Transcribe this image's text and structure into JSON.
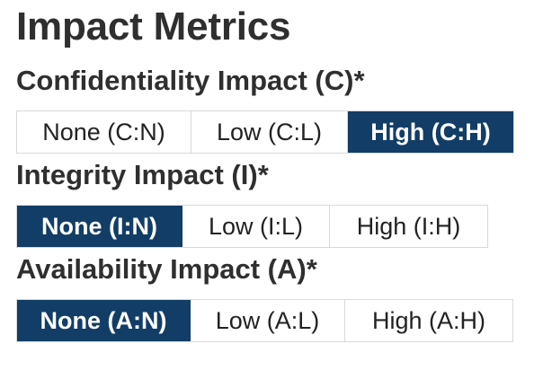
{
  "title": "Impact Metrics",
  "accent_color": "#123d66",
  "metrics": [
    {
      "label": "Confidentiality Impact (C)*",
      "options": [
        "None (C:N)",
        "Low (C:L)",
        "High (C:H)"
      ],
      "selected": "High (C:H)"
    },
    {
      "label": "Integrity Impact (I)*",
      "options": [
        "None (I:N)",
        "Low (I:L)",
        "High (I:H)"
      ],
      "selected": "None (I:N)"
    },
    {
      "label": "Availability Impact (A)*",
      "options": [
        "None (A:N)",
        "Low (A:L)",
        "High (A:H)"
      ],
      "selected": "None (A:N)"
    }
  ]
}
